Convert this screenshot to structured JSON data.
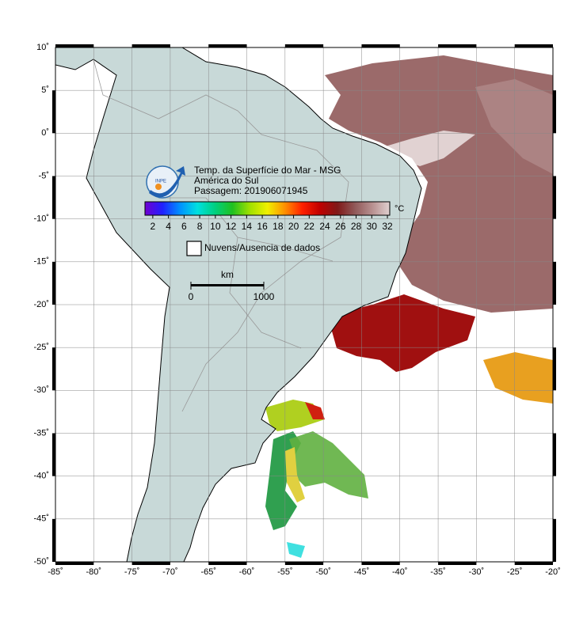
{
  "map": {
    "title": "Temp. da Superfície do Mar - MSG",
    "subtitle": "América do Sul",
    "pass": "Passagem: 201906071945",
    "logo": "INPE",
    "xlim": [
      -85,
      -20
    ],
    "ylim": [
      -50,
      10
    ],
    "xticks": [
      {
        "value": -85,
        "label": "-85˚"
      },
      {
        "value": -80,
        "label": "-80˚"
      },
      {
        "value": -75,
        "label": "-75˚"
      },
      {
        "value": -70,
        "label": "-70˚"
      },
      {
        "value": -65,
        "label": "-65˚"
      },
      {
        "value": -60,
        "label": "-60˚"
      },
      {
        "value": -55,
        "label": "-55˚"
      },
      {
        "value": -50,
        "label": "-50˚"
      },
      {
        "value": -45,
        "label": "-45˚"
      },
      {
        "value": -40,
        "label": "-40˚"
      },
      {
        "value": -35,
        "label": "-35˚"
      },
      {
        "value": -30,
        "label": "-30˚"
      },
      {
        "value": -25,
        "label": "-25˚"
      },
      {
        "value": -20,
        "label": "-20˚"
      }
    ],
    "yticks": [
      {
        "value": 10,
        "label": "10˚"
      },
      {
        "value": 5,
        "label": "5˚"
      },
      {
        "value": 0,
        "label": "0˚"
      },
      {
        "value": -5,
        "label": "-5˚"
      },
      {
        "value": -10,
        "label": "-10˚"
      },
      {
        "value": -15,
        "label": "-15˚"
      },
      {
        "value": -20,
        "label": "-20˚"
      },
      {
        "value": -25,
        "label": "-25˚"
      },
      {
        "value": -30,
        "label": "-30˚"
      },
      {
        "value": -35,
        "label": "-35˚"
      },
      {
        "value": -40,
        "label": "-40˚"
      },
      {
        "value": -45,
        "label": "-45˚"
      },
      {
        "value": -50,
        "label": "-50˚"
      }
    ],
    "grid": true,
    "colorbar": {
      "unit": "°C",
      "range": [
        1,
        32.3
      ],
      "ticks": [
        2,
        4,
        6,
        8,
        10,
        12,
        14,
        16,
        18,
        20,
        22,
        24,
        26,
        28,
        30,
        32
      ],
      "colors": [
        "#7000d0",
        "#2020ff",
        "#0090ff",
        "#00e0e0",
        "#00d080",
        "#20c020",
        "#a0e000",
        "#f0f000",
        "#ff9000",
        "#ff2000",
        "#c00000",
        "#801818",
        "#905858",
        "#b89090",
        "#e0d0d0"
      ]
    },
    "legend": "Nuvens/Ausencia de dados",
    "scale": {
      "unit": "km",
      "range": [
        0,
        1000
      ],
      "ticks": [
        0,
        1000
      ]
    }
  }
}
